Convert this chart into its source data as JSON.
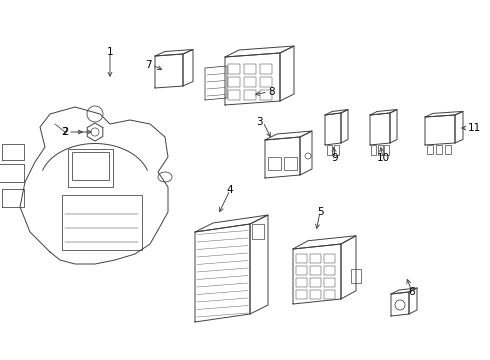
{
  "background_color": "#ffffff",
  "line_color": "#404040",
  "fig_width": 4.9,
  "fig_height": 3.6,
  "dpi": 100
}
